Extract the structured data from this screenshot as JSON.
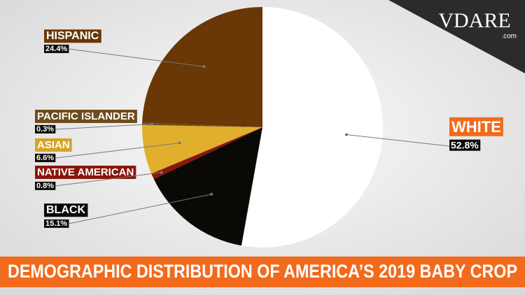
{
  "chart_data": {
    "type": "pie",
    "title": "DEMOGRAPHIC DISTRIBUTION OF AMERICA’S 2019 BABY CROP",
    "categories": [
      "WHITE",
      "BLACK",
      "NATIVE AMERICAN",
      "ASIAN",
      "PACIFIC ISLANDER",
      "HISPANIC"
    ],
    "values": [
      52.8,
      15.1,
      0.8,
      6.6,
      0.3,
      24.4
    ],
    "value_labels": [
      "52.8%",
      "15.1%",
      "0.8%",
      "6.6%",
      "0.3%",
      "24.4%"
    ],
    "colors": [
      "#ffffff",
      "#0b0906",
      "#8a160c",
      "#e0b02c",
      "#6e4c1c",
      "#6a3706"
    ],
    "label_colors": [
      "#f26a1b",
      "#0b0906",
      "#8a160c",
      "#d6a426",
      "#6e4c1c",
      "#6a3706"
    ]
  },
  "logo": {
    "text": "VDARE",
    "suffix": ".com"
  }
}
